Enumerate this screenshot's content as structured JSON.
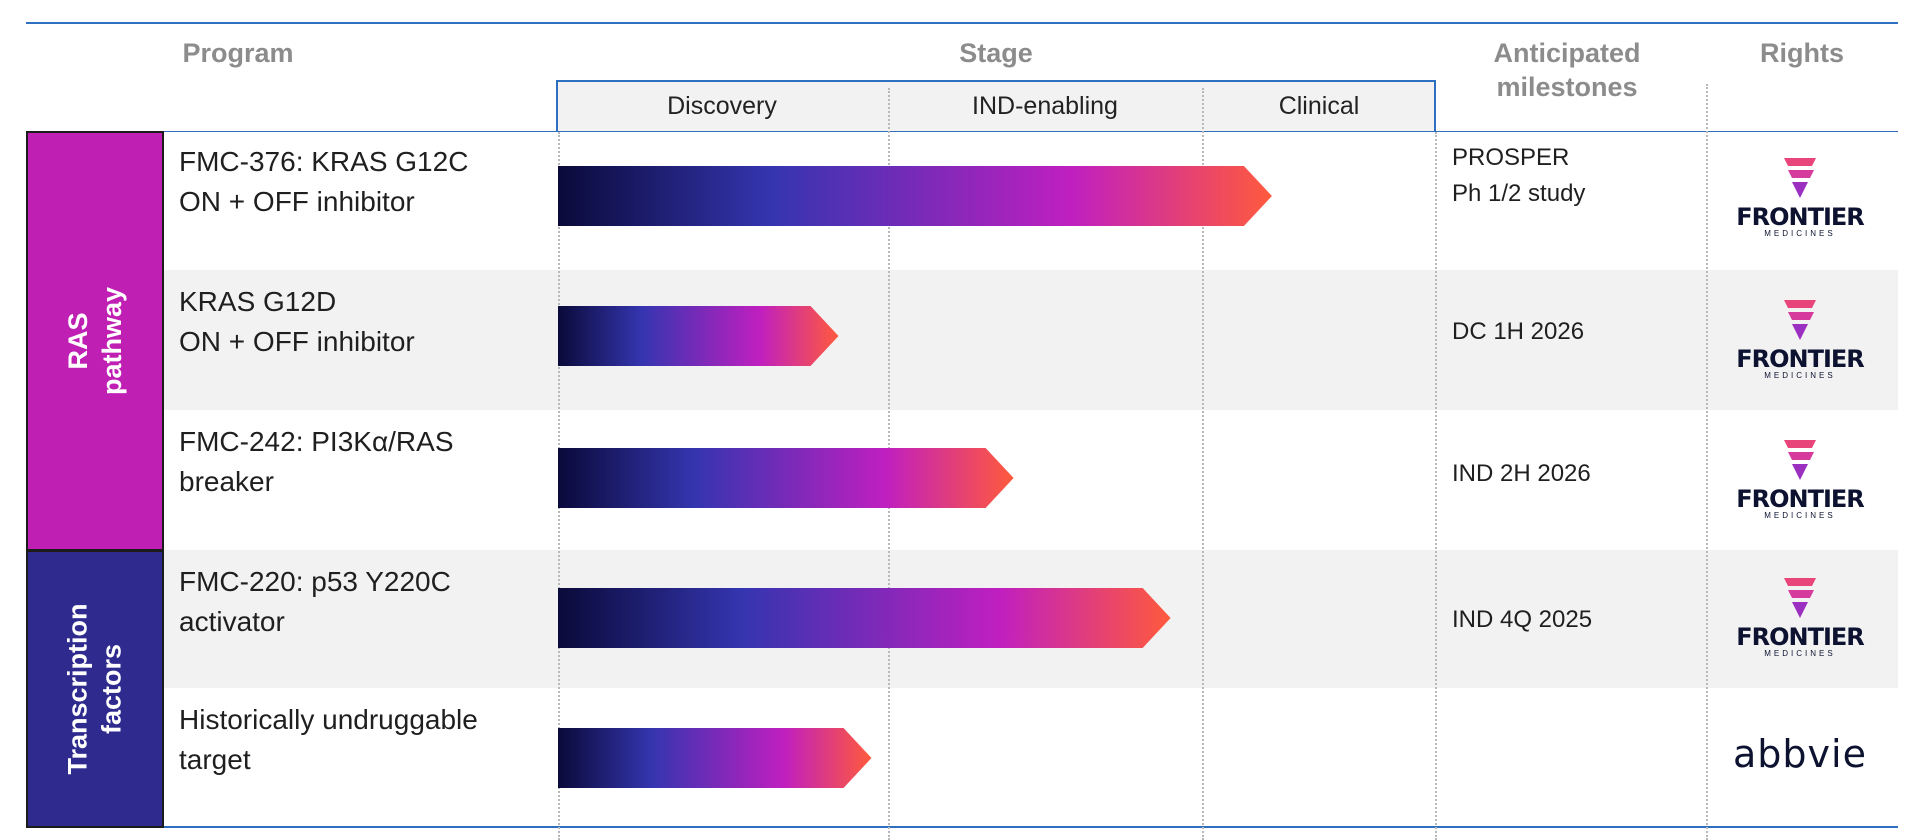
{
  "header": {
    "program": "Program",
    "stage": "Stage",
    "milestones": "Anticipated\nmilestones",
    "rights": "Rights"
  },
  "stages": [
    "Discovery",
    "IND-enabling",
    "Clinical"
  ],
  "categories": [
    {
      "label": "RAS pathway",
      "color": "#c01fb4"
    },
    {
      "label": "Transcription\nfactors",
      "color": "#2e2a8e"
    }
  ],
  "rows": [
    {
      "program": "FMC-376: KRAS G12C\nON + OFF inhibitor",
      "milestone": "PROSPER\nPh 1/2 study",
      "rights": "frontier"
    },
    {
      "program": "KRAS G12D\nON + OFF inhibitor",
      "milestone": "DC 1H 2026",
      "rights": "frontier"
    },
    {
      "program": "FMC-242: PI3Kα/RAS\nbreaker",
      "milestone": "IND 2H 2026",
      "rights": "frontier"
    },
    {
      "program": "FMC-220: p53 Y220C\nactivator",
      "milestone": "IND 4Q 2025",
      "rights": "frontier"
    },
    {
      "program": "Historically undruggable\ntarget",
      "milestone": "",
      "rights": "abbvie"
    }
  ],
  "logos": {
    "frontier_word": "FRONTIER",
    "frontier_sub": "MEDICINES",
    "abbvie_word": "abbvie"
  },
  "chart_data": {
    "type": "bar",
    "orientation": "horizontal",
    "x_scale": "stage",
    "x_categories": [
      "Discovery",
      "IND-enabling",
      "Clinical"
    ],
    "categories": [
      "FMC-376: KRAS G12C ON + OFF inhibitor",
      "KRAS G12D ON + OFF inhibitor",
      "FMC-242: PI3Kα/RAS breaker",
      "FMC-220: p53 Y220C activator",
      "Historically undruggable target"
    ],
    "values": [
      2.3,
      0.85,
      1.4,
      1.9,
      0.95
    ],
    "xlim": [
      0,
      3
    ],
    "gradient_colors": [
      "#0a0a3a",
      "#3535b0",
      "#c01fc0",
      "#ff5a3c"
    ]
  }
}
